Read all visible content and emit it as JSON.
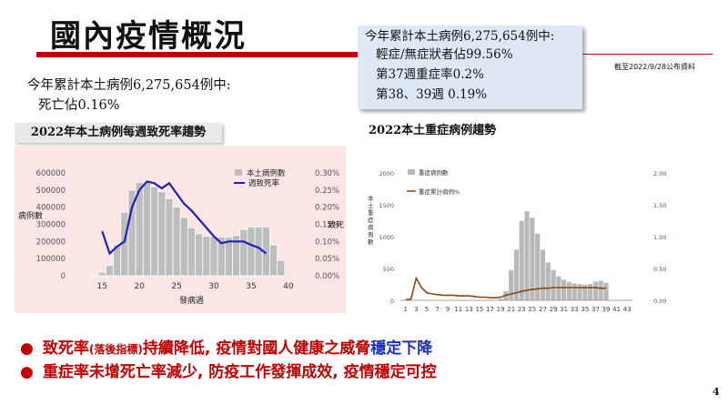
{
  "header": {
    "title": "國內疫情概況"
  },
  "callout": {
    "line0": "今年累計本土病例6,275,654例中:",
    "line1": "輕症/無症狀者佔99.56%",
    "line2": "第37週重症率0.2%",
    "line3": "第38、39週 0.19%"
  },
  "as_of": "截至2022/9/28公布資料",
  "summary": {
    "line1": "今年累計本土病例6,275,654例中:",
    "line2": "死亡佔0.16%"
  },
  "chart1_tab": "2022年本土病例每週致死率趨勢",
  "chart2_tab": "2022本土重症病例趨勢",
  "bullets": [
    {
      "dot": "●",
      "a": "致死率",
      "b": "(落後指標)",
      "c": "持續降低, 疫情對國人健康之威脅",
      "d": "穩定下降"
    },
    {
      "dot": "●",
      "a": "重症率未增死亡率減少, 防疫工作發揮成效, 疫情穩定可控"
    }
  ],
  "page_number": "4",
  "colors": {
    "accent_red": "#c00000",
    "bar_gray": "#bdbdbd",
    "line_blue": "#2020b8",
    "line_brown": "#8b4513",
    "callout_bg": "#dfe9f6",
    "chart1_bg": "#fbe5e5"
  },
  "chart_data": [
    {
      "type": "bar",
      "xlabel": "發病週",
      "ylabel": "病例數",
      "y2label": "致死",
      "x": [
        14,
        15,
        16,
        17,
        18,
        19,
        20,
        21,
        22,
        23,
        24,
        25,
        26,
        27,
        28,
        29,
        30,
        31,
        32,
        33,
        34,
        35,
        36,
        37,
        38,
        39
      ],
      "xticks": [
        15,
        20,
        25,
        30,
        35,
        40
      ],
      "xlim": [
        13.5,
        40.5
      ],
      "ylim": [
        0,
        600000
      ],
      "yticks": [
        "0",
        "100000",
        "200000",
        "300000",
        "400000",
        "500000",
        "600000"
      ],
      "y2ticks": [
        "0.00%",
        "0.05%",
        "0.10%",
        "0.15%",
        "0.20%",
        "0.25%",
        "0.30%"
      ],
      "y2lim": [
        0,
        0.3
      ],
      "series": [
        {
          "name": "本土病例數",
          "kind": "bar",
          "values": [
            5000,
            20000,
            60000,
            180000,
            370000,
            500000,
            545000,
            545000,
            520000,
            490000,
            450000,
            400000,
            340000,
            280000,
            245000,
            230000,
            230000,
            225000,
            225000,
            235000,
            270000,
            285000,
            285000,
            285000,
            180000,
            90000
          ]
        },
        {
          "name": "週致死率",
          "kind": "line",
          "x": [
            15,
            16,
            17,
            18,
            19,
            20,
            21,
            22,
            23,
            24,
            25,
            26,
            27,
            28,
            29,
            30,
            31,
            32,
            33,
            34,
            35,
            36,
            37
          ],
          "values": [
            0.13,
            0.065,
            0.085,
            0.1,
            0.2,
            0.25,
            0.275,
            0.27,
            0.255,
            0.27,
            0.24,
            0.21,
            0.19,
            0.165,
            0.14,
            0.115,
            0.095,
            0.1,
            0.1,
            0.1,
            0.09,
            0.082,
            0.065
          ]
        }
      ],
      "legend": "top-right"
    },
    {
      "type": "bar",
      "ylabel": "本土重症病例數",
      "y2label": "重症累計病例%",
      "x": [
        1,
        2,
        3,
        4,
        5,
        6,
        7,
        8,
        9,
        10,
        11,
        12,
        13,
        14,
        15,
        16,
        17,
        18,
        19,
        20,
        21,
        22,
        23,
        24,
        25,
        26,
        27,
        28,
        29,
        30,
        31,
        32,
        33,
        34,
        35,
        36,
        37,
        38,
        39
      ],
      "xticks": [
        1,
        3,
        5,
        7,
        9,
        11,
        13,
        15,
        17,
        19,
        21,
        23,
        25,
        27,
        29,
        31,
        33,
        35,
        37,
        39,
        41,
        43
      ],
      "xlim": [
        0,
        44
      ],
      "ylim": [
        0,
        2000
      ],
      "yticks": [
        "0",
        "500",
        "1000",
        "1500",
        "2000"
      ],
      "y2ticks": [
        "0.00",
        "0.50",
        "1.00",
        "1.50",
        "2.00"
      ],
      "y2lim": [
        0,
        2
      ],
      "series": [
        {
          "name": "重症病例數",
          "kind": "bar",
          "values": [
            0,
            0,
            0,
            0,
            0,
            0,
            0,
            0,
            0,
            0,
            0,
            0,
            0,
            0,
            0,
            0,
            0,
            0,
            30,
            150,
            480,
            800,
            1250,
            1400,
            1300,
            1050,
            800,
            600,
            480,
            380,
            330,
            290,
            270,
            260,
            250,
            260,
            300,
            310,
            280
          ]
        },
        {
          "name": "重症累計病例%",
          "kind": "line",
          "values": [
            0.01,
            0.02,
            0.35,
            0.2,
            0.12,
            0.1,
            0.09,
            0.08,
            0.08,
            0.08,
            0.07,
            0.07,
            0.07,
            0.06,
            0.05,
            0.05,
            0.04,
            0.04,
            0.05,
            0.08,
            0.1,
            0.12,
            0.14,
            0.16,
            0.17,
            0.18,
            0.19,
            0.19,
            0.2,
            0.2,
            0.2,
            0.2,
            0.2,
            0.2,
            0.2,
            0.2,
            0.2,
            0.19,
            0.19
          ]
        }
      ],
      "legend": "top-left"
    }
  ]
}
